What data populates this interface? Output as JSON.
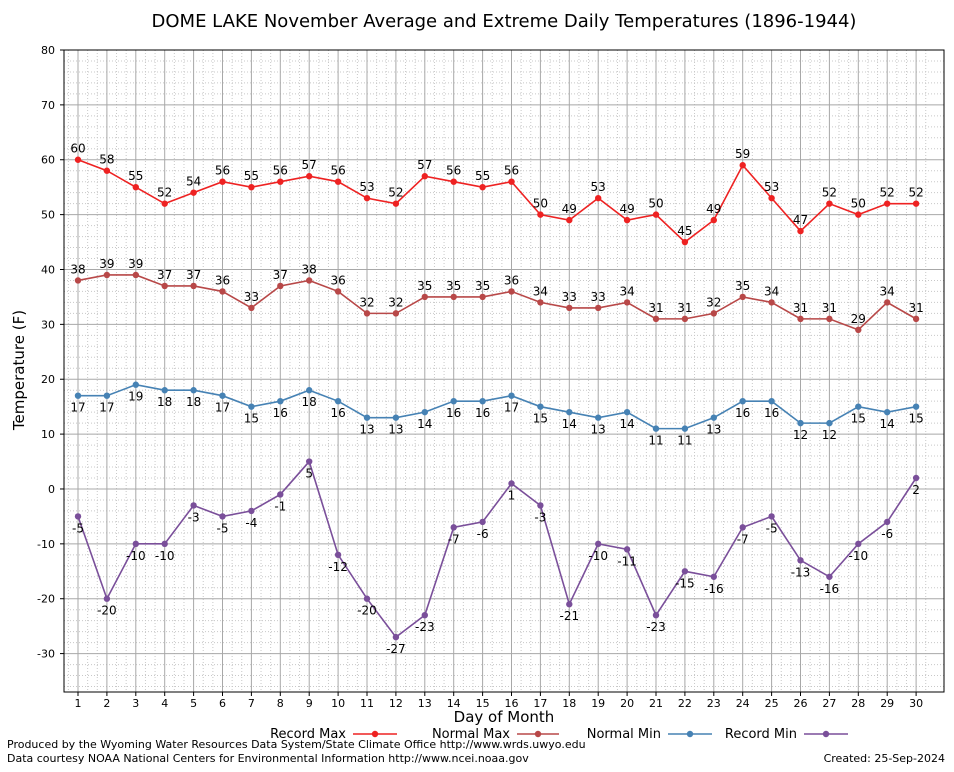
{
  "chart_data": {
    "type": "line",
    "title": "DOME LAKE November Average and Extreme Daily Temperatures (1896-1944)",
    "xlabel": "Day of Month",
    "ylabel": "Temperature (F)",
    "xlim": [
      1,
      30
    ],
    "ylim": [
      -37,
      80
    ],
    "y_ticks": [
      -30,
      -20,
      -10,
      0,
      10,
      20,
      30,
      40,
      50,
      60,
      70,
      80
    ],
    "x": [
      1,
      2,
      3,
      4,
      5,
      6,
      7,
      8,
      9,
      10,
      11,
      12,
      13,
      14,
      15,
      16,
      17,
      18,
      19,
      20,
      21,
      22,
      23,
      24,
      25,
      26,
      27,
      28,
      29,
      30
    ],
    "grid": true,
    "legend_position": "bottom",
    "series": [
      {
        "name": "Record Max",
        "color": "#ee2222",
        "values": [
          60,
          58,
          55,
          52,
          54,
          56,
          55,
          56,
          57,
          56,
          53,
          52,
          57,
          56,
          55,
          56,
          50,
          49,
          53,
          49,
          50,
          45,
          49,
          59,
          53,
          47,
          52,
          50,
          52,
          52
        ]
      },
      {
        "name": "Normal Max",
        "color": "#b84848",
        "values": [
          38,
          39,
          39,
          37,
          37,
          36,
          33,
          37,
          38,
          36,
          32,
          32,
          35,
          35,
          35,
          36,
          34,
          33,
          33,
          34,
          31,
          31,
          32,
          35,
          34,
          31,
          31,
          29,
          34,
          31
        ]
      },
      {
        "name": "Normal Min",
        "color": "#4682b4",
        "values": [
          17,
          17,
          19,
          18,
          18,
          17,
          15,
          16,
          18,
          16,
          13,
          13,
          14,
          16,
          16,
          17,
          15,
          14,
          13,
          14,
          11,
          11,
          13,
          16,
          16,
          12,
          12,
          15,
          14,
          15
        ]
      },
      {
        "name": "Record Min",
        "color": "#7a4f9a",
        "values": [
          -5,
          -20,
          -10,
          -10,
          -3,
          -5,
          -4,
          -1,
          5,
          -12,
          -20,
          -27,
          -23,
          -7,
          -6,
          1,
          -3,
          -21,
          -10,
          -11,
          -23,
          -15,
          -16,
          -7,
          -5,
          -13,
          -16,
          -10,
          -6,
          2
        ]
      }
    ]
  },
  "footer": {
    "produced_by": "Produced by the Wyoming Water Resources Data System/State Climate Office http://www.wrds.uwyo.edu",
    "courtesy": "Data courtesy NOAA National Centers for Environmental Information http://www.ncei.noaa.gov",
    "created": "Created:  25-Sep-2024"
  }
}
